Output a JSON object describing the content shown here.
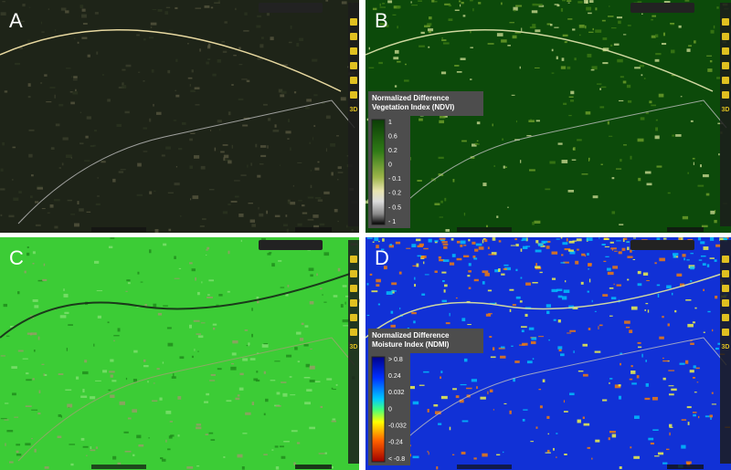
{
  "panels": [
    {
      "label": "A"
    },
    {
      "label": "B",
      "legend": {
        "title": "Normalized Difference Vegetation Index (NDVI)",
        "labels": [
          "1",
          "0.6",
          "0.2",
          "0",
          "- 0.1",
          "- 0.2",
          "- 0.5",
          "- 1"
        ]
      }
    },
    {
      "label": "C"
    },
    {
      "label": "D",
      "legend": {
        "title": "Normalized Difference Moisture Index (NDMI)",
        "labels": [
          "> 0.8",
          "0.24",
          "0.032",
          "0",
          "-0.032",
          "-0.24",
          "< -0.8"
        ]
      }
    }
  ],
  "toolbar": {
    "button_3d": "3D"
  }
}
